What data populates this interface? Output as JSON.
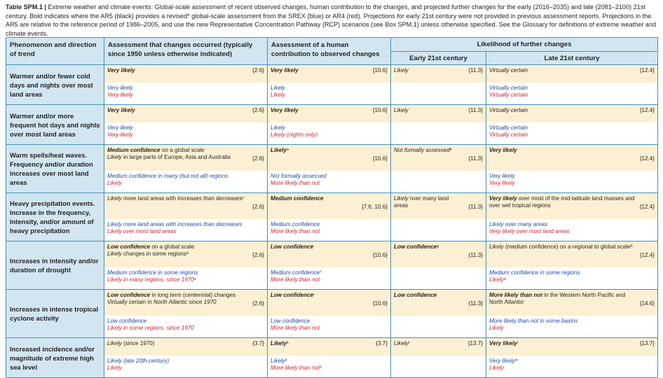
{
  "caption": {
    "table_label": "Table SPM.1 |",
    "text": " Extreme weather and climate events: Global-scale assessment of recent observed changes, human contribution to the changes, and projected further changes for the early (2016–2035) and late (2081–2100) 21st century. Bold indicates where the AR5 (black) provides a revised* global-scale assessment from the SREX (blue) or AR4 (red). Projections for early 21st century were not provided in previous assessment reports. Projections in the AR5 are relative to the reference period of 1986–2005, and use the new Representative Concentration Pathway (RCP) scenarios (see Box SPM.1) unless otherwise specified. See the Glossary for definitions of extreme weather and climate events."
  },
  "colors": {
    "header_bg": "#d2e6f1",
    "highlight_bg": "#fbf0d4",
    "border": "#4a8fb3",
    "ar5": "#231f20",
    "srex": "#264a9a",
    "ar4": "#d2232a"
  },
  "headers": {
    "phenomenon": "Phenomenon and direction of trend",
    "occurred": "Assessment that changes occurred (typically since 1950 unless otherwise indicated)",
    "human": "Assessment of a human contribution to observed changes",
    "likelihood": "Likelihood of further changes",
    "early": "Early 21st century",
    "late": "Late 21st century"
  },
  "rows": [
    {
      "phenomenon": "Warmer and/or fewer cold days and nights over most land areas",
      "occurred": {
        "ar5": [
          "Very likely"
        ],
        "ref": "{2.6}",
        "srex": [
          "Very likely"
        ],
        "ar4": [
          "Very likely"
        ]
      },
      "human": {
        "ar5": [
          "Very likely"
        ],
        "ref": "{10.6}",
        "srex": [
          "Likely"
        ],
        "ar4": [
          "Likely"
        ]
      },
      "early": {
        "ar5": [
          "Likely"
        ],
        "ref": "{11.3}"
      },
      "late": {
        "ar5": [
          "Virtually certain"
        ],
        "ref": "{12.4}",
        "srex": [
          "Virtually certain"
        ],
        "ar4": [
          "Virtually certain"
        ]
      }
    },
    {
      "phenomenon": "Warmer and/or more frequent hot days and nights over most land areas",
      "occurred": {
        "ar5": [
          "Very likely"
        ],
        "ref": "{2.6}",
        "srex": [
          "Very likely"
        ],
        "ar4": [
          "Very likely"
        ]
      },
      "human": {
        "ar5": [
          "Very likely"
        ],
        "ref": "{10.6}",
        "srex": [
          "Likely"
        ],
        "ar4": [
          "Likely (nights only)"
        ]
      },
      "early": {
        "ar5": [
          "Likely"
        ],
        "ref": "{11.3}"
      },
      "late": {
        "ar5": [
          "Virtually certain"
        ],
        "ref": "{12.4}",
        "srex": [
          "Virtually certain"
        ],
        "ar4": [
          "Virtually certain"
        ]
      }
    },
    {
      "phenomenon": "Warm spells/heat waves. Frequency and/or duration increases over most land areas",
      "occurred": {
        "ar5": [
          "Medium confidence on a global scale",
          "Likely in large parts of Europe, Asia and Australia"
        ],
        "ref": "{2.6}",
        "srex": [
          "Medium confidence in many (but not all) regions"
        ],
        "ar4": [
          "Likely"
        ]
      },
      "human": {
        "ar5": [
          "Likelyᵃ"
        ],
        "ref": "{10.6}",
        "srex": [
          "Not formally assessed"
        ],
        "ar4": [
          "More likely than not"
        ]
      },
      "early": {
        "ar5": [
          "Not formally assessedᵇ"
        ],
        "ref": "{11.3}"
      },
      "late": {
        "ar5": [
          "Very likely"
        ],
        "ref": "{12.4}",
        "srex": [
          "Very likely"
        ],
        "ar4": [
          "Very likely"
        ]
      }
    },
    {
      "phenomenon": "Heavy precipitation events. Increase in the frequency, intensity, and/or amount of heavy precipitation",
      "occurred": {
        "ar5": [
          "Likely more land areas with increases than decreasesᶜ"
        ],
        "ref": "{2.6}",
        "srex": [
          "Likely more land areas with increases than decreases"
        ],
        "ar4": [
          "Likely over most land areas"
        ]
      },
      "human": {
        "ar5": [
          "Medium confidence"
        ],
        "ref": "{7.6, 10.6}",
        "srex": [
          "Medium confidence"
        ],
        "ar4": [
          "More likely than not"
        ]
      },
      "early": {
        "ar5": [
          "Likely over many land areas"
        ],
        "ref": "{11.3}"
      },
      "late": {
        "ar5": [
          "Very likely over most of the mid-latitude land masses and over wet tropical regions"
        ],
        "ref": "{12.4}",
        "srex": [
          "Likely over many areas"
        ],
        "ar4": [
          "Very likely over most land areas"
        ]
      }
    },
    {
      "phenomenon": "Increases in intensity and/or duration of drought",
      "occurred": {
        "ar5": [
          "Low confidence on a global scale",
          "Likely changes in some regionsᵈ"
        ],
        "ref": "{2.6}",
        "srex": [
          "Medium confidence in some regions"
        ],
        "ar4": [
          "Likely in many regions, since 1970ᵉ"
        ]
      },
      "human": {
        "ar5": [
          "Low confidence"
        ],
        "ref": "{10.6}",
        "srex": [
          "Medium confidenceᶠ"
        ],
        "ar4": [
          "More likely than not"
        ]
      },
      "early": {
        "ar5": [
          "Low confidenceᵍ"
        ],
        "ref": "{11.3}"
      },
      "late": {
        "ar5": [
          "Likely (medium confidence) on a regional to global scaleʰ"
        ],
        "ref": "{12.4}",
        "srex": [
          "Medium confidence in some regions"
        ],
        "ar4": [
          "Likelyᵉ"
        ]
      }
    },
    {
      "phenomenon": "Increases in intense tropical cyclone activity",
      "occurred": {
        "ar5": [
          "Low confidence in long term (centennial) changes",
          "Virtually certain in North Atlantic since 1970"
        ],
        "ref": "{2.6}",
        "srex": [
          "Low confidence"
        ],
        "ar4": [
          "Likely in some regions, since 1970"
        ]
      },
      "human": {
        "ar5": [
          "Low confidenceⁱ"
        ],
        "ref": "{10.6}",
        "srex": [
          "Low confidence"
        ],
        "ar4": [
          "More likely than not"
        ]
      },
      "early": {
        "ar5": [
          "Low confidence"
        ],
        "ref": "{11.3}"
      },
      "late": {
        "ar5": [
          "More likely than not in the Western North Pacific and North Atlanticʲ"
        ],
        "ref": "{14.6}",
        "srex": [
          "More likely than not in some basins"
        ],
        "ar4": [
          "Likely"
        ]
      }
    },
    {
      "phenomenon": "Increased incidence and/or magnitude of extreme high sea level",
      "occurred": {
        "ar5": [
          "Likely (since 1970)"
        ],
        "ref": "{3.7}",
        "srex": [
          "Likely (late 20th century)"
        ],
        "ar4": [
          "Likely"
        ]
      },
      "human": {
        "ar5": [
          "Likelyᵏ"
        ],
        "ref": "{3.7}",
        "srex": [
          "Likelyᵏ"
        ],
        "ar4": [
          "More likely than notᵏ"
        ]
      },
      "early": {
        "ar5": [
          "Likelyˡ"
        ],
        "ref": "{13.7}"
      },
      "late": {
        "ar5": [
          "Very likelyˡ"
        ],
        "ref": "{13.7}",
        "srex": [
          "Very likelyᵐ"
        ],
        "ar4": [
          "Likely"
        ]
      }
    }
  ]
}
